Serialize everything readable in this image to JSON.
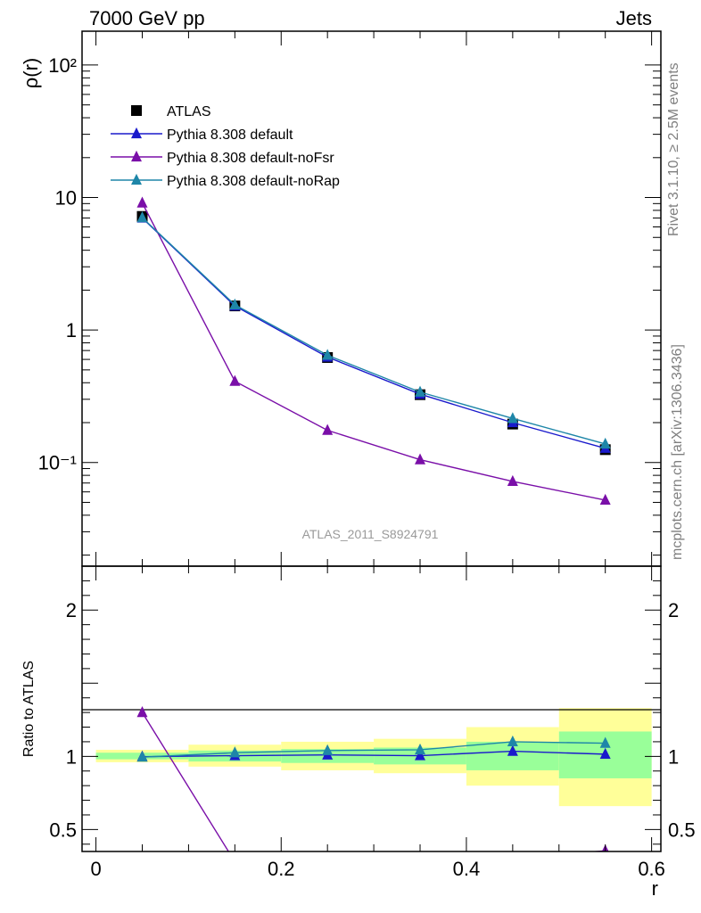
{
  "header": {
    "left": "7000 GeV pp",
    "right": "Jets"
  },
  "side_text": {
    "upper": "Rivet 3.1.10, ≥ 2.5M events",
    "lower": "mcplots.cern.ch [arXiv:1306.3436]"
  },
  "watermark": "ATLAS_2011_S8924791",
  "chart_data": [
    {
      "type": "scatter",
      "panel": "main",
      "ylabel": "ρ(r)",
      "yscale": "log",
      "xlim": [
        -0.015,
        0.61
      ],
      "ylim": [
        0.0165,
        180
      ],
      "x_ticks": [
        0,
        0.2,
        0.4,
        0.6
      ],
      "y_tick_labels": [
        "10⁻¹",
        "1",
        "10",
        "10²"
      ],
      "legend_position": "top-left",
      "x": [
        0.05,
        0.15,
        0.25,
        0.35,
        0.45,
        0.55
      ],
      "series": [
        {
          "name": "ATLAS",
          "marker": "square",
          "color": "#000000",
          "values": [
            7.2,
            1.52,
            0.62,
            0.325,
            0.195,
            0.125
          ]
        },
        {
          "name": "Pythia 8.308 default",
          "marker": "triangle",
          "color": "#1a1acc",
          "values": [
            7.0,
            1.52,
            0.625,
            0.328,
            0.2,
            0.128
          ]
        },
        {
          "name": "Pythia 8.308 default-noFsr",
          "marker": "triangle",
          "color": "#7a0fa8",
          "values": [
            9.1,
            0.41,
            0.175,
            0.105,
            0.072,
            0.052
          ]
        },
        {
          "name": "Pythia 8.308 default-noRap",
          "marker": "triangle",
          "color": "#1e86a8",
          "values": [
            7.05,
            1.55,
            0.645,
            0.34,
            0.215,
            0.138
          ]
        }
      ]
    },
    {
      "type": "line",
      "panel": "ratio",
      "xlabel": "r",
      "ylabel": "Ratio to ATLAS",
      "xlim": [
        -0.015,
        0.61
      ],
      "ylim": [
        0.35,
        2.3
      ],
      "x_ticks": [
        0,
        0.2,
        0.4,
        0.6
      ],
      "x_tick_labels": [
        "0",
        "0.2",
        "0.4",
        "0.6"
      ],
      "y_ticks": [
        0.5,
        1,
        2
      ],
      "y_tick_labels": [
        "0.5",
        "1",
        "2"
      ],
      "bands": [
        {
          "x0": 0.0,
          "x1": 0.1,
          "yellow": [
            0.96,
            1.045
          ],
          "green": [
            0.98,
            1.025
          ]
        },
        {
          "x0": 0.1,
          "x1": 0.2,
          "yellow": [
            0.93,
            1.08
          ],
          "green": [
            0.965,
            1.04
          ]
        },
        {
          "x0": 0.2,
          "x1": 0.3,
          "yellow": [
            0.905,
            1.1
          ],
          "green": [
            0.955,
            1.05
          ]
        },
        {
          "x0": 0.3,
          "x1": 0.4,
          "yellow": [
            0.885,
            1.12
          ],
          "green": [
            0.945,
            1.06
          ]
        },
        {
          "x0": 0.4,
          "x1": 0.5,
          "yellow": [
            0.8,
            1.2
          ],
          "green": [
            0.905,
            1.1
          ]
        },
        {
          "x0": 0.5,
          "x1": 0.6,
          "yellow": [
            0.66,
            1.33
          ],
          "green": [
            0.85,
            1.17
          ]
        }
      ],
      "x": [
        0.05,
        0.15,
        0.25,
        0.35,
        0.45,
        0.55
      ],
      "series": [
        {
          "name": "Pythia 8.308 default",
          "color": "#1a1acc",
          "values": [
            0.998,
            1.005,
            1.01,
            1.005,
            1.035,
            1.015
          ]
        },
        {
          "name": "Pythia 8.308 default-noFsr",
          "color": "#7a0fa8",
          "values": [
            1.3,
            0.28,
            0.28,
            0.28,
            0.3,
            0.355
          ]
        },
        {
          "name": "Pythia 8.308 default-noRap",
          "color": "#1e86a8",
          "values": [
            0.995,
            1.025,
            1.04,
            1.045,
            1.1,
            1.09
          ]
        }
      ]
    }
  ]
}
